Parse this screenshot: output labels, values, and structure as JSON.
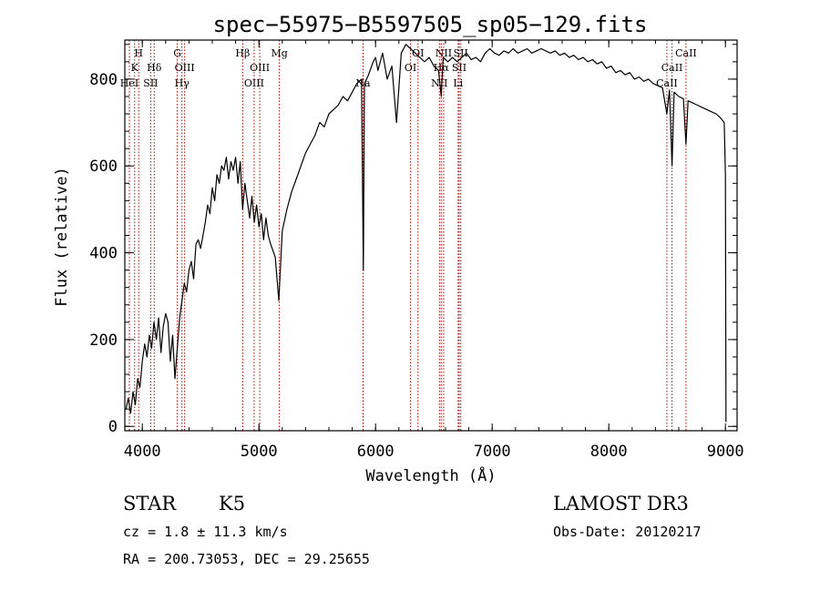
{
  "chart_data": {
    "type": "line",
    "title": "spec−55975−B5597505_sp05−129.fits",
    "xlabel": "Wavelength (Å)",
    "ylabel": "Flux (relative)",
    "xlim": [
      3850,
      9100
    ],
    "ylim": [
      -10,
      890
    ],
    "xticks": [
      "4000",
      "5000",
      "6000",
      "7000",
      "8000",
      "9000"
    ],
    "xtick_values": [
      4000,
      5000,
      6000,
      7000,
      8000,
      9000
    ],
    "yticks": [
      "0",
      "200",
      "400",
      "600",
      "800"
    ],
    "ytick_values": [
      0,
      200,
      400,
      600,
      800
    ],
    "series": [
      {
        "name": "flux",
        "points": [
          [
            3860,
            40
          ],
          [
            3880,
            65
          ],
          [
            3900,
            30
          ],
          [
            3920,
            80
          ],
          [
            3940,
            50
          ],
          [
            3960,
            110
          ],
          [
            3980,
            90
          ],
          [
            4000,
            150
          ],
          [
            4020,
            190
          ],
          [
            4040,
            160
          ],
          [
            4060,
            210
          ],
          [
            4080,
            180
          ],
          [
            4100,
            240
          ],
          [
            4120,
            200
          ],
          [
            4140,
            250
          ],
          [
            4160,
            170
          ],
          [
            4180,
            230
          ],
          [
            4200,
            260
          ],
          [
            4220,
            240
          ],
          [
            4240,
            150
          ],
          [
            4260,
            210
          ],
          [
            4280,
            110
          ],
          [
            4300,
            180
          ],
          [
            4320,
            250
          ],
          [
            4340,
            290
          ],
          [
            4360,
            330
          ],
          [
            4380,
            310
          ],
          [
            4400,
            360
          ],
          [
            4420,
            380
          ],
          [
            4440,
            340
          ],
          [
            4460,
            420
          ],
          [
            4480,
            430
          ],
          [
            4500,
            410
          ],
          [
            4520,
            440
          ],
          [
            4540,
            470
          ],
          [
            4560,
            510
          ],
          [
            4580,
            490
          ],
          [
            4600,
            550
          ],
          [
            4620,
            520
          ],
          [
            4640,
            580
          ],
          [
            4660,
            560
          ],
          [
            4680,
            600
          ],
          [
            4700,
            590
          ],
          [
            4720,
            620
          ],
          [
            4740,
            570
          ],
          [
            4760,
            610
          ],
          [
            4780,
            590
          ],
          [
            4800,
            620
          ],
          [
            4820,
            560
          ],
          [
            4840,
            610
          ],
          [
            4860,
            500
          ],
          [
            4880,
            560
          ],
          [
            4900,
            520
          ],
          [
            4920,
            480
          ],
          [
            4940,
            530
          ],
          [
            4960,
            470
          ],
          [
            4980,
            510
          ],
          [
            5000,
            460
          ],
          [
            5020,
            490
          ],
          [
            5040,
            430
          ],
          [
            5060,
            480
          ],
          [
            5080,
            440
          ],
          [
            5100,
            420
          ],
          [
            5140,
            390
          ],
          [
            5170,
            290
          ],
          [
            5200,
            450
          ],
          [
            5240,
            500
          ],
          [
            5280,
            540
          ],
          [
            5320,
            570
          ],
          [
            5360,
            600
          ],
          [
            5400,
            630
          ],
          [
            5440,
            650
          ],
          [
            5480,
            670
          ],
          [
            5520,
            700
          ],
          [
            5560,
            690
          ],
          [
            5600,
            720
          ],
          [
            5640,
            730
          ],
          [
            5680,
            740
          ],
          [
            5720,
            760
          ],
          [
            5760,
            750
          ],
          [
            5800,
            770
          ],
          [
            5840,
            790
          ],
          [
            5880,
            800
          ],
          [
            5895,
            360
          ],
          [
            5905,
            790
          ],
          [
            5940,
            810
          ],
          [
            5980,
            840
          ],
          [
            6000,
            850
          ],
          [
            6020,
            820
          ],
          [
            6060,
            860
          ],
          [
            6100,
            800
          ],
          [
            6140,
            830
          ],
          [
            6180,
            700
          ],
          [
            6220,
            860
          ],
          [
            6260,
            880
          ],
          [
            6300,
            870
          ],
          [
            6340,
            860
          ],
          [
            6380,
            850
          ],
          [
            6420,
            840
          ],
          [
            6460,
            850
          ],
          [
            6500,
            830
          ],
          [
            6540,
            820
          ],
          [
            6563,
            760
          ],
          [
            6580,
            850
          ],
          [
            6620,
            840
          ],
          [
            6660,
            850
          ],
          [
            6700,
            840
          ],
          [
            6740,
            850
          ],
          [
            6780,
            860
          ],
          [
            6820,
            845
          ],
          [
            6860,
            850
          ],
          [
            6900,
            840
          ],
          [
            6940,
            860
          ],
          [
            6980,
            870
          ],
          [
            7020,
            860
          ],
          [
            7060,
            855
          ],
          [
            7100,
            865
          ],
          [
            7140,
            860
          ],
          [
            7180,
            870
          ],
          [
            7220,
            860
          ],
          [
            7260,
            865
          ],
          [
            7300,
            870
          ],
          [
            7340,
            860
          ],
          [
            7380,
            865
          ],
          [
            7420,
            870
          ],
          [
            7460,
            865
          ],
          [
            7500,
            860
          ],
          [
            7540,
            865
          ],
          [
            7580,
            855
          ],
          [
            7620,
            860
          ],
          [
            7660,
            850
          ],
          [
            7700,
            855
          ],
          [
            7740,
            845
          ],
          [
            7780,
            850
          ],
          [
            7820,
            840
          ],
          [
            7860,
            845
          ],
          [
            7900,
            835
          ],
          [
            7940,
            840
          ],
          [
            7980,
            825
          ],
          [
            8020,
            830
          ],
          [
            8060,
            815
          ],
          [
            8100,
            820
          ],
          [
            8140,
            810
          ],
          [
            8180,
            815
          ],
          [
            8220,
            800
          ],
          [
            8260,
            805
          ],
          [
            8300,
            795
          ],
          [
            8340,
            800
          ],
          [
            8380,
            790
          ],
          [
            8420,
            785
          ],
          [
            8460,
            780
          ],
          [
            8498,
            720
          ],
          [
            8520,
            775
          ],
          [
            8542,
            600
          ],
          [
            8560,
            770
          ],
          [
            8600,
            760
          ],
          [
            8640,
            755
          ],
          [
            8662,
            650
          ],
          [
            8680,
            750
          ],
          [
            8720,
            745
          ],
          [
            8760,
            740
          ],
          [
            8800,
            735
          ],
          [
            8840,
            730
          ],
          [
            8880,
            725
          ],
          [
            8920,
            720
          ],
          [
            8960,
            710
          ],
          [
            8990,
            700
          ],
          [
            9000,
            580
          ],
          [
            9005,
            10
          ]
        ]
      }
    ],
    "line_markers": [
      {
        "wavelength": 3889,
        "label": "HeI",
        "row": 3
      },
      {
        "wavelength": 3934,
        "label": "K",
        "row": 2
      },
      {
        "wavelength": 3969,
        "label": "H",
        "row": 1
      },
      {
        "wavelength": 4072,
        "label": "SII",
        "row": 3
      },
      {
        "wavelength": 4102,
        "label": "Hδ",
        "row": 2
      },
      {
        "wavelength": 4300,
        "label": "G",
        "row": 1
      },
      {
        "wavelength": 4340,
        "label": "Hγ",
        "row": 3
      },
      {
        "wavelength": 4363,
        "label": "OIII",
        "row": 2
      },
      {
        "wavelength": 4861,
        "label": "Hβ",
        "row": 1
      },
      {
        "wavelength": 4959,
        "label": "OIII",
        "row": 3
      },
      {
        "wavelength": 5007,
        "label": "OIII",
        "row": 2
      },
      {
        "wavelength": 5175,
        "label": "Mg",
        "row": 1
      },
      {
        "wavelength": 5893,
        "label": "Na",
        "row": 3
      },
      {
        "wavelength": 6300,
        "label": "OI",
        "row": 2
      },
      {
        "wavelength": 6364,
        "label": "OI",
        "row": 1
      },
      {
        "wavelength": 6548,
        "label": "NII",
        "row": 3
      },
      {
        "wavelength": 6563,
        "label": "Hα",
        "row": 2
      },
      {
        "wavelength": 6584,
        "label": "NII",
        "row": 1
      },
      {
        "wavelength": 6708,
        "label": "Li",
        "row": 3
      },
      {
        "wavelength": 6717,
        "label": "SII",
        "row": 2
      },
      {
        "wavelength": 6731,
        "label": "SII",
        "row": 1
      },
      {
        "wavelength": 8498,
        "label": "CaII",
        "row": 3
      },
      {
        "wavelength": 8542,
        "label": "CaII",
        "row": 2
      },
      {
        "wavelength": 8662,
        "label": "CaII",
        "row": 1
      }
    ]
  },
  "info": {
    "object_class": "STAR",
    "subclass": "K5",
    "survey": "LAMOST DR3",
    "redshift": "cz = 1.8 ± 11.3 km/s",
    "obs_date": "Obs-Date: 20120217",
    "coords": "RA = 200.73053, DEC =  29.25655"
  },
  "colors": {
    "line_marker": "#c00000",
    "spectrum": "#000000"
  }
}
